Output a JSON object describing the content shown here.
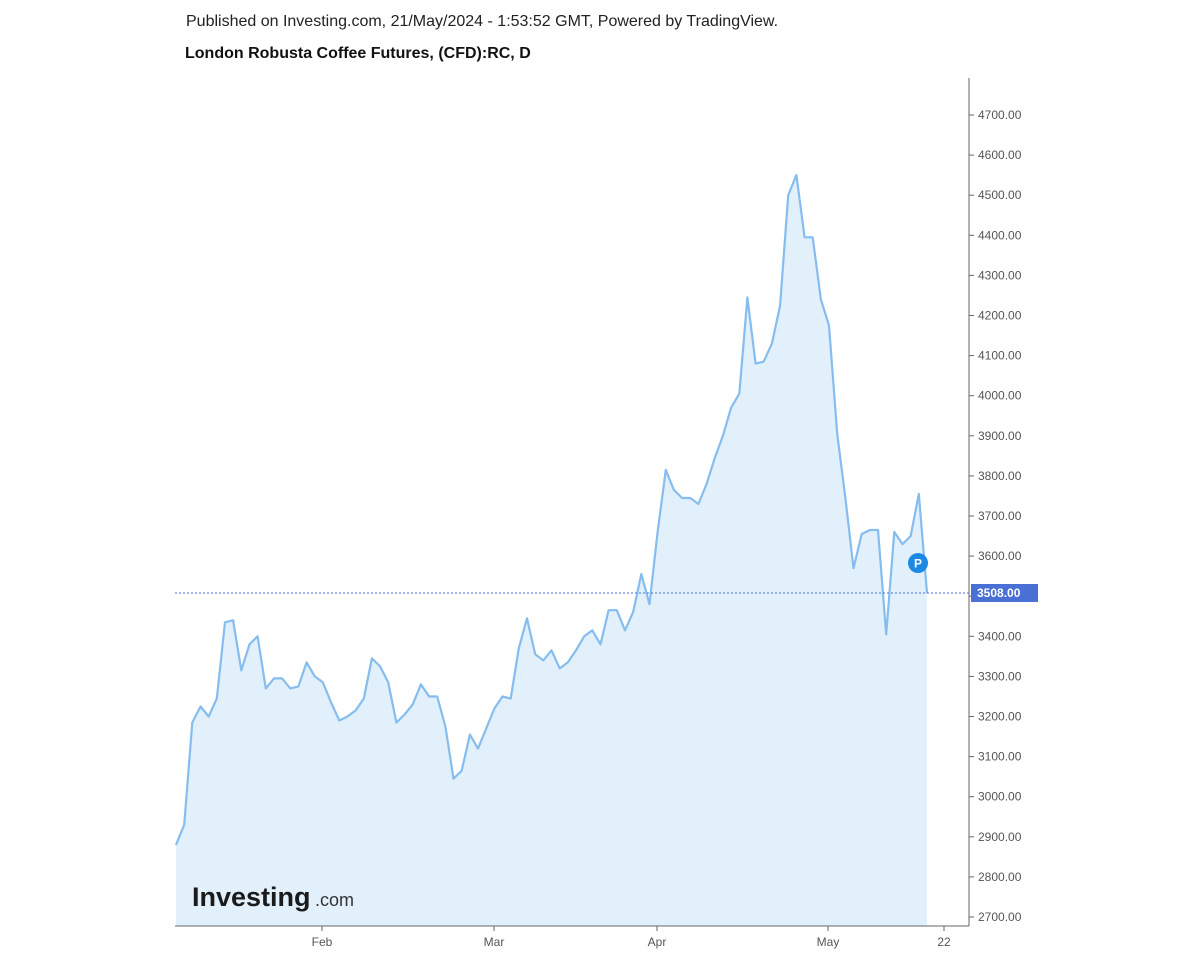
{
  "header": {
    "published_line": "Published on Investing.com, 21/May/2024 - 1:53:52 GMT, Powered by TradingView.",
    "title": "London Robusta Coffee Futures, (CFD):RC, D"
  },
  "logo": {
    "main": "Investing",
    "suffix": ".com"
  },
  "colors": {
    "line": "#86bdef",
    "area": "#e2f0fb",
    "price_label_bg": "#4a70d6",
    "marker": "#1e88e5",
    "axis": "#666666"
  },
  "chart_data": {
    "type": "area",
    "series": [
      {
        "values": [
          2880,
          2930,
          3185,
          3225,
          3200,
          3245,
          3435,
          3440,
          3315,
          3380,
          3400,
          3270,
          3295,
          3295,
          3270,
          3275,
          3335,
          3300,
          3285,
          3235,
          3190,
          3200,
          3215,
          3245,
          3345,
          3325,
          3285,
          3185,
          3205,
          3230,
          3280,
          3250,
          3250,
          3175,
          3045,
          3065,
          3155,
          3120,
          3170,
          3220,
          3250,
          3245,
          3370,
          3445,
          3355,
          3340,
          3365,
          3320,
          3335,
          3365,
          3400,
          3415,
          3380,
          3465,
          3465,
          3415,
          3460,
          3555,
          3480,
          3660,
          3815,
          3765,
          3745,
          3745,
          3730,
          3780,
          3845,
          3900,
          3970,
          4005,
          4245,
          4080,
          4085,
          4130,
          4225,
          4500,
          4550,
          4395,
          4395,
          4240,
          4175,
          3905,
          3745,
          3570,
          3655,
          3665,
          3665,
          3405,
          3660,
          3630,
          3650,
          3755,
          3508
        ]
      }
    ],
    "last_price": "3508.00",
    "marker_label": "P",
    "y_ticks": [
      "2700.00",
      "2800.00",
      "2900.00",
      "3000.00",
      "3100.00",
      "3200.00",
      "3300.00",
      "3400.00",
      "3500.00",
      "3600.00",
      "3700.00",
      "3800.00",
      "3900.00",
      "4000.00",
      "4100.00",
      "4200.00",
      "4300.00",
      "4400.00",
      "4500.00",
      "4600.00",
      "4700.00"
    ],
    "x_ticks": [
      "Feb",
      "Mar",
      "Apr",
      "May",
      "22"
    ],
    "ylim": [
      2700,
      4700
    ],
    "grid": false
  }
}
